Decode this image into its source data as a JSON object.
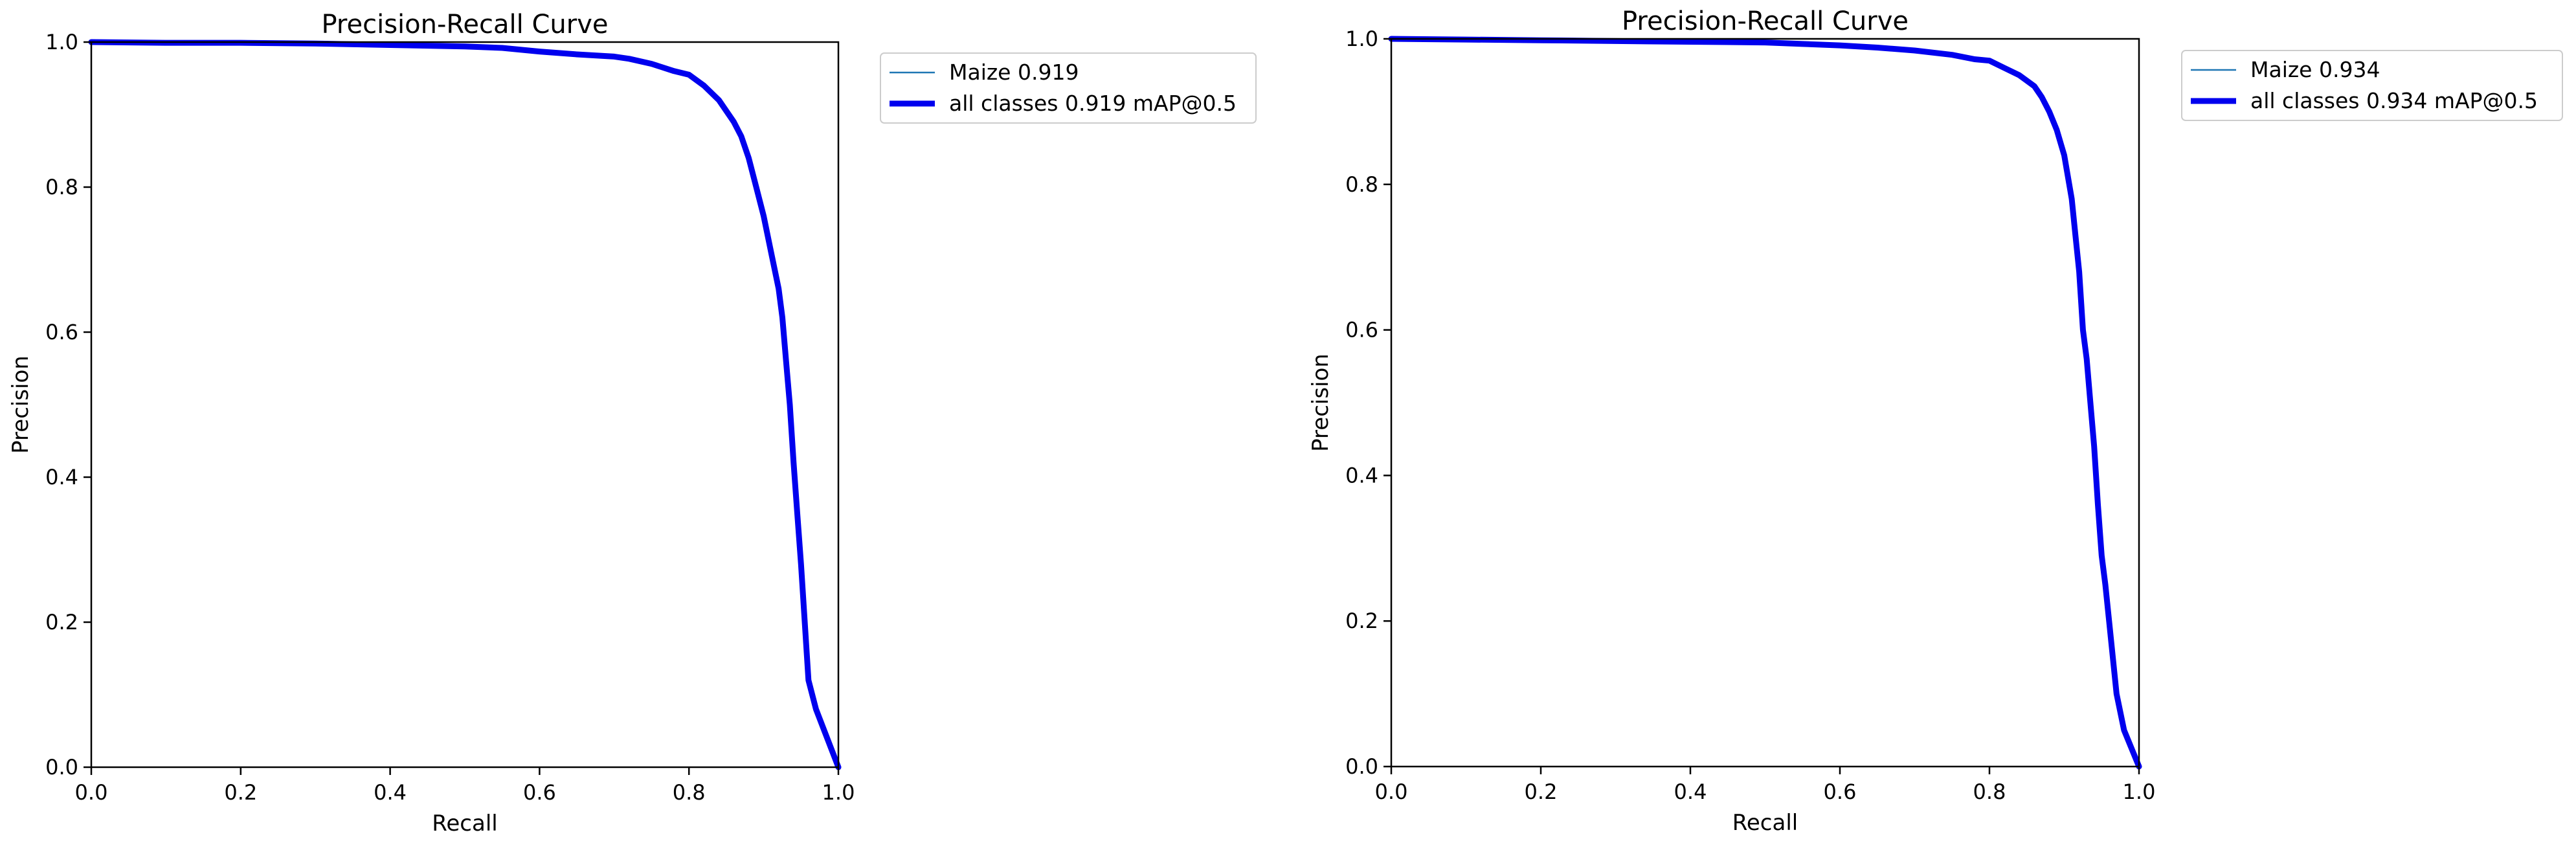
{
  "chart_data": [
    {
      "type": "line",
      "title": "Precision-Recall Curve",
      "xlabel": "Recall",
      "ylabel": "Precision",
      "xlim": [
        0.0,
        1.0
      ],
      "ylim": [
        0.0,
        1.0
      ],
      "xticks": [
        "0.0",
        "0.2",
        "0.4",
        "0.6",
        "0.8",
        "1.0"
      ],
      "yticks": [
        "0.0",
        "0.2",
        "0.4",
        "0.6",
        "0.8",
        "1.0"
      ],
      "grid": false,
      "legend_position": "outside-top-right",
      "series": [
        {
          "name": "Maize 0.919",
          "color": "#1f77b4",
          "style": "thin",
          "x": [
            0.0,
            0.1,
            0.2,
            0.3,
            0.4,
            0.5,
            0.55,
            0.6,
            0.65,
            0.7,
            0.72,
            0.75,
            0.78,
            0.8,
            0.82,
            0.84,
            0.86,
            0.87,
            0.88,
            0.89,
            0.9,
            0.91,
            0.92,
            0.925,
            0.93,
            0.935,
            0.94,
            0.945,
            0.95,
            0.96,
            0.965,
            0.97,
            1.0
          ],
          "y": [
            1.0,
            0.999,
            0.999,
            0.998,
            0.996,
            0.994,
            0.992,
            0.987,
            0.983,
            0.98,
            0.977,
            0.97,
            0.96,
            0.955,
            0.94,
            0.92,
            0.89,
            0.87,
            0.84,
            0.8,
            0.76,
            0.71,
            0.66,
            0.62,
            0.56,
            0.5,
            0.42,
            0.35,
            0.28,
            0.12,
            0.1,
            0.08,
            0.0
          ]
        },
        {
          "name": "all classes 0.919 mAP@0.5",
          "color": "#0000ee",
          "style": "thick",
          "x": [
            0.0,
            0.1,
            0.2,
            0.3,
            0.4,
            0.5,
            0.55,
            0.6,
            0.65,
            0.7,
            0.72,
            0.75,
            0.78,
            0.8,
            0.82,
            0.84,
            0.86,
            0.87,
            0.88,
            0.89,
            0.9,
            0.91,
            0.92,
            0.925,
            0.93,
            0.935,
            0.94,
            0.945,
            0.95,
            0.96,
            0.965,
            0.97,
            1.0
          ],
          "y": [
            1.0,
            0.999,
            0.999,
            0.998,
            0.996,
            0.994,
            0.992,
            0.987,
            0.983,
            0.98,
            0.977,
            0.97,
            0.96,
            0.955,
            0.94,
            0.92,
            0.89,
            0.87,
            0.84,
            0.8,
            0.76,
            0.71,
            0.66,
            0.62,
            0.56,
            0.5,
            0.42,
            0.35,
            0.28,
            0.12,
            0.1,
            0.08,
            0.0
          ]
        }
      ]
    },
    {
      "type": "line",
      "title": "Precision-Recall Curve",
      "xlabel": "Recall",
      "ylabel": "Precision",
      "xlim": [
        0.0,
        1.0
      ],
      "ylim": [
        0.0,
        1.0
      ],
      "xticks": [
        "0.0",
        "0.2",
        "0.4",
        "0.6",
        "0.8",
        "1.0"
      ],
      "yticks": [
        "0.0",
        "0.2",
        "0.4",
        "0.6",
        "0.8",
        "1.0"
      ],
      "grid": false,
      "legend_position": "outside-top-right",
      "series": [
        {
          "name": "Maize 0.934",
          "color": "#1f77b4",
          "style": "thin",
          "x": [
            0.0,
            0.1,
            0.2,
            0.3,
            0.4,
            0.5,
            0.55,
            0.6,
            0.65,
            0.7,
            0.75,
            0.78,
            0.8,
            0.82,
            0.84,
            0.86,
            0.87,
            0.88,
            0.89,
            0.9,
            0.91,
            0.915,
            0.92,
            0.925,
            0.93,
            0.935,
            0.94,
            0.945,
            0.95,
            0.955,
            0.96,
            0.97,
            0.98,
            1.0
          ],
          "y": [
            1.0,
            0.999,
            0.998,
            0.997,
            0.996,
            0.995,
            0.993,
            0.991,
            0.988,
            0.984,
            0.978,
            0.972,
            0.97,
            0.96,
            0.95,
            0.935,
            0.92,
            0.9,
            0.875,
            0.84,
            0.78,
            0.73,
            0.68,
            0.6,
            0.56,
            0.5,
            0.44,
            0.36,
            0.29,
            0.25,
            0.2,
            0.1,
            0.05,
            0.0
          ]
        },
        {
          "name": "all classes 0.934 mAP@0.5",
          "color": "#0000ee",
          "style": "thick",
          "x": [
            0.0,
            0.1,
            0.2,
            0.3,
            0.4,
            0.5,
            0.55,
            0.6,
            0.65,
            0.7,
            0.75,
            0.78,
            0.8,
            0.82,
            0.84,
            0.86,
            0.87,
            0.88,
            0.89,
            0.9,
            0.91,
            0.915,
            0.92,
            0.925,
            0.93,
            0.935,
            0.94,
            0.945,
            0.95,
            0.955,
            0.96,
            0.97,
            0.98,
            1.0
          ],
          "y": [
            1.0,
            0.999,
            0.998,
            0.997,
            0.996,
            0.995,
            0.993,
            0.991,
            0.988,
            0.984,
            0.978,
            0.972,
            0.97,
            0.96,
            0.95,
            0.935,
            0.92,
            0.9,
            0.875,
            0.84,
            0.78,
            0.73,
            0.68,
            0.6,
            0.56,
            0.5,
            0.44,
            0.36,
            0.29,
            0.25,
            0.2,
            0.1,
            0.05,
            0.0
          ]
        }
      ]
    }
  ]
}
